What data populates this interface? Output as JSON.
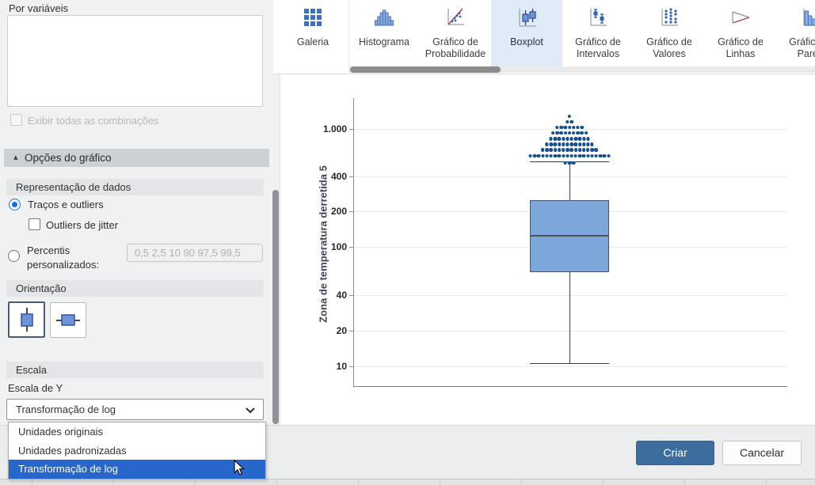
{
  "sidebar": {
    "by_variables_label": "Por variáveis",
    "show_all_combinations_label": "Exibir todas as combinações",
    "chart_options_header": "Opções do gráfico",
    "data_representation": {
      "header": "Representação de dados",
      "radio_traces_outliers": "Traços e outliers",
      "checkbox_jitter": "Outliers de jitter",
      "radio_percentiles_line1": "Percentis",
      "radio_percentiles_line2": "personalizados:",
      "percentiles_value": "0,5 2,5 10 90 97,5 99,5"
    },
    "orientation": {
      "header": "Orientação",
      "selected": "vertical"
    },
    "scale": {
      "header": "Escala",
      "y_scale_label": "Escala de Y",
      "selected_value": "Transformação de log",
      "options": [
        "Unidades originais",
        "Unidades padronizadas",
        "Transformação de log"
      ],
      "highlighted_option": "Transformação de log"
    }
  },
  "gallery": {
    "tabs": [
      {
        "label": "Galeria",
        "icon": "gallery-grid-icon",
        "selected": false
      },
      {
        "label": "Histograma",
        "icon": "histogram-icon",
        "selected": false
      },
      {
        "label": "Gráfico de Probabilidade",
        "icon": "probability-plot-icon",
        "selected": false
      },
      {
        "label": "Boxplot",
        "icon": "boxplot-icon",
        "selected": true
      },
      {
        "label": "Gráfico de Intervalos",
        "icon": "interval-plot-icon",
        "selected": false
      },
      {
        "label": "Gráfico de Valores",
        "icon": "value-plot-icon",
        "selected": false
      },
      {
        "label": "Gráfico de Linhas",
        "icon": "line-plot-icon",
        "selected": false
      },
      {
        "label": "Gráfico de Pareto",
        "icon": "pareto-icon",
        "selected": false
      }
    ]
  },
  "chart_data": {
    "type": "boxplot",
    "ylabel": "Zona de temperatura derretida 5",
    "yscale": "log",
    "ytick_labels": [
      "1.000",
      "400",
      "200",
      "100",
      "40",
      "20",
      "10"
    ],
    "ytick_values": [
      1000,
      400,
      200,
      100,
      40,
      20,
      10
    ],
    "grid": "horizontal-gridlines",
    "legend": "none",
    "series": [
      {
        "name": "Zona de temperatura derretida 5",
        "whisker_low": 11,
        "q1": 62,
        "median": 126,
        "q3": 251,
        "whisker_high": 533,
        "outliers_approx": {
          "min": 510,
          "max": 1280,
          "count": 78
        },
        "outlier_dot_rows": [
          1,
          2,
          7,
          9,
          10,
          12,
          14,
          20
        ],
        "outlier_dots_below_whisker_cap": 3
      }
    ]
  },
  "footer": {
    "create_label": "Criar",
    "cancel_label": "Cancelar"
  },
  "colors": {
    "accent_blue": "#1273de",
    "dropdown_highlight": "#2767cb",
    "box_fill": "#7ca7d8",
    "outlier_dot": "#17508f",
    "create_button": "#3d6c9e",
    "selected_tab_bg": "#dfecf8"
  }
}
